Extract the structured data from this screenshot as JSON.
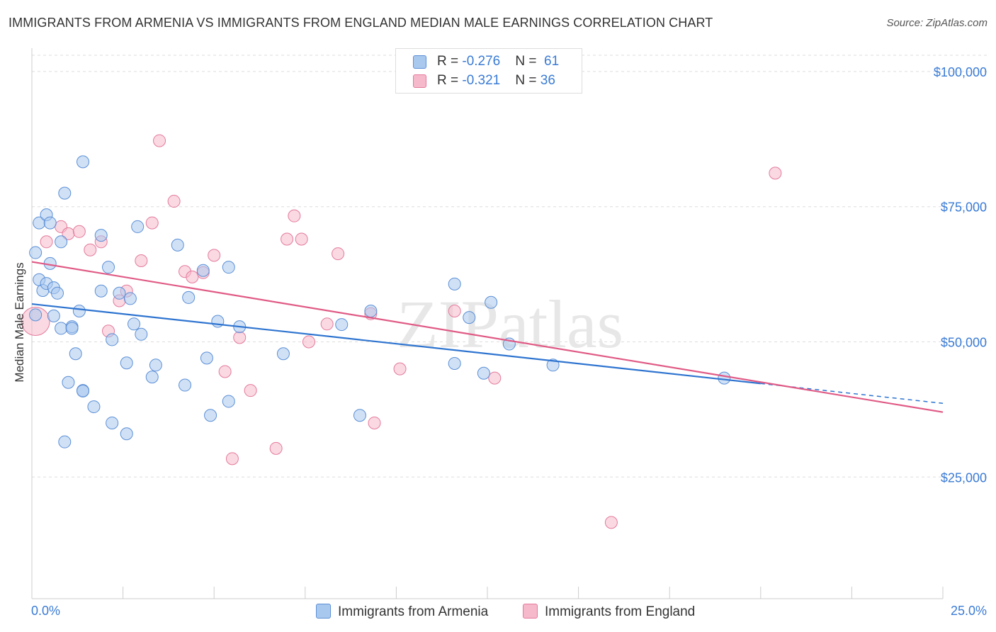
{
  "title": "IMMIGRANTS FROM ARMENIA VS IMMIGRANTS FROM ENGLAND MEDIAN MALE EARNINGS CORRELATION CHART",
  "source": "Source: ZipAtlas.com",
  "watermark": "ZIPatlas",
  "colors": {
    "armenia_fill": "#a9c8ee",
    "armenia_stroke": "#5b8fd6",
    "armenia_line": "#2e74d0",
    "england_fill": "#f6b9cb",
    "england_stroke": "#e47a9c",
    "england_line": "#e05a85",
    "tick_label": "#3a7bd5",
    "grid": "#dddddd"
  },
  "legend": {
    "rows": [
      {
        "r_label": "R = ",
        "r_value": "-0.276",
        "n_label": "N = ",
        "n_value": "61"
      },
      {
        "r_label": "R = ",
        "r_value": "-0.321",
        "n_label": "N = ",
        "n_value": "36"
      }
    ]
  },
  "chart_data": {
    "type": "scatter",
    "title": "IMMIGRANTS FROM ARMENIA VS IMMIGRANTS FROM ENGLAND MEDIAN MALE EARNINGS CORRELATION CHART",
    "xlabel": "",
    "ylabel": "Median Male Earnings",
    "xlim": [
      0,
      25
    ],
    "ylim": [
      2500,
      103000
    ],
    "x_tick_labels": [
      "0.0%",
      "25.0%"
    ],
    "y_ticks": [
      25000,
      50000,
      75000,
      100000
    ],
    "y_tick_labels": [
      "$25,000",
      "$50,000",
      "$75,000",
      "$100,000"
    ],
    "grid": true,
    "legend_position": "top-center",
    "series": [
      {
        "name": "Immigrants from Armenia",
        "R": -0.276,
        "N": 61,
        "trend": {
          "x": [
            0.0,
            20.0
          ],
          "y": [
            57000,
            42300
          ]
        },
        "points": [
          [
            0.1,
            55000
          ],
          [
            0.1,
            66500
          ],
          [
            0.2,
            61500
          ],
          [
            0.2,
            72000
          ],
          [
            0.3,
            59500
          ],
          [
            0.4,
            73500
          ],
          [
            0.4,
            60800
          ],
          [
            0.5,
            72000
          ],
          [
            0.5,
            64500
          ],
          [
            0.6,
            54800
          ],
          [
            0.6,
            60000
          ],
          [
            0.7,
            59000
          ],
          [
            0.8,
            52500
          ],
          [
            0.8,
            68500
          ],
          [
            0.9,
            77500
          ],
          [
            0.9,
            31500
          ],
          [
            1.0,
            42500
          ],
          [
            1.1,
            52800
          ],
          [
            1.1,
            52500
          ],
          [
            1.2,
            47800
          ],
          [
            1.3,
            55700
          ],
          [
            1.4,
            83300
          ],
          [
            1.4,
            41000
          ],
          [
            1.4,
            40900
          ],
          [
            1.7,
            38000
          ],
          [
            1.9,
            69700
          ],
          [
            1.9,
            59400
          ],
          [
            2.1,
            63800
          ],
          [
            2.2,
            35000
          ],
          [
            2.2,
            50400
          ],
          [
            2.4,
            59000
          ],
          [
            2.6,
            46100
          ],
          [
            2.6,
            33000
          ],
          [
            2.7,
            58000
          ],
          [
            2.8,
            53300
          ],
          [
            2.9,
            71300
          ],
          [
            3.0,
            51400
          ],
          [
            3.3,
            43500
          ],
          [
            3.4,
            45700
          ],
          [
            4.0,
            67900
          ],
          [
            4.2,
            42000
          ],
          [
            4.3,
            58200
          ],
          [
            4.7,
            63200
          ],
          [
            4.8,
            47000
          ],
          [
            4.9,
            36400
          ],
          [
            5.1,
            53800
          ],
          [
            5.4,
            39000
          ],
          [
            5.4,
            63800
          ],
          [
            5.7,
            52800
          ],
          [
            6.9,
            47800
          ],
          [
            8.5,
            53200
          ],
          [
            9.0,
            36400
          ],
          [
            9.3,
            55700
          ],
          [
            11.6,
            60700
          ],
          [
            11.6,
            46000
          ],
          [
            12.0,
            54500
          ],
          [
            12.4,
            44200
          ],
          [
            12.6,
            57300
          ],
          [
            13.1,
            49600
          ],
          [
            14.3,
            45700
          ],
          [
            19.0,
            43300
          ]
        ]
      },
      {
        "name": "Immigrants from England",
        "R": -0.321,
        "N": 36,
        "trend": {
          "x": [
            0.0,
            25.0
          ],
          "y": [
            64800,
            37000
          ]
        },
        "points": [
          [
            0.1,
            53800
          ],
          [
            0.4,
            68500
          ],
          [
            0.8,
            71300
          ],
          [
            1.0,
            70000
          ],
          [
            1.3,
            70400
          ],
          [
            1.6,
            67000
          ],
          [
            1.9,
            68500
          ],
          [
            2.1,
            52000
          ],
          [
            2.4,
            57600
          ],
          [
            2.6,
            59400
          ],
          [
            3.0,
            65000
          ],
          [
            3.3,
            72000
          ],
          [
            3.5,
            87200
          ],
          [
            3.9,
            76000
          ],
          [
            4.2,
            63000
          ],
          [
            4.4,
            62000
          ],
          [
            4.7,
            62800
          ],
          [
            5.0,
            66000
          ],
          [
            5.3,
            44500
          ],
          [
            5.5,
            28400
          ],
          [
            5.7,
            50800
          ],
          [
            6.0,
            41000
          ],
          [
            6.7,
            30300
          ],
          [
            7.0,
            69000
          ],
          [
            7.2,
            73300
          ],
          [
            7.4,
            69000
          ],
          [
            7.6,
            50000
          ],
          [
            8.1,
            53300
          ],
          [
            8.4,
            66300
          ],
          [
            9.3,
            55200
          ],
          [
            9.4,
            35000
          ],
          [
            10.1,
            45000
          ],
          [
            11.6,
            55700
          ],
          [
            12.7,
            43300
          ],
          [
            15.9,
            16600
          ],
          [
            20.4,
            81200
          ]
        ]
      }
    ]
  }
}
